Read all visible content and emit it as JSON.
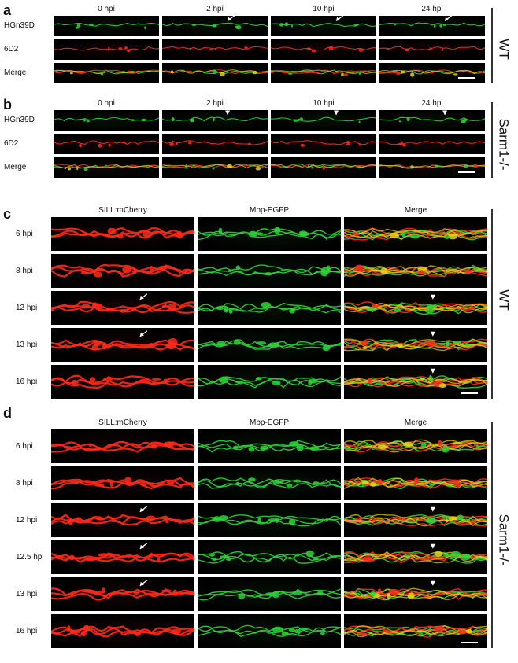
{
  "panels": [
    {
      "id": "a",
      "letter": "a",
      "genotype": "WT",
      "columns": [
        "0 hpi",
        "2 hpi",
        "10 hpi",
        "24 hpi"
      ],
      "rows": [
        "HGn39D",
        "6D2",
        "Merge"
      ],
      "channels": [
        "green",
        "red",
        "merge"
      ],
      "markers": [
        {
          "col": 1,
          "row": 0,
          "kind": "arrow"
        },
        {
          "col": 2,
          "row": 0,
          "kind": "arrow"
        },
        {
          "col": 3,
          "row": 0,
          "kind": "arrow"
        }
      ],
      "scale_bar": true
    },
    {
      "id": "b",
      "letter": "b",
      "genotype": "Sarm1-/-",
      "columns": [
        "0 hpi",
        "2 hpi",
        "10 hpi",
        "24 hpi"
      ],
      "rows": [
        "HGn39D",
        "6D2",
        "Merge"
      ],
      "channels": [
        "green",
        "red",
        "merge"
      ],
      "markers": [
        {
          "col": 1,
          "row": 0,
          "kind": "arrowhead"
        },
        {
          "col": 2,
          "row": 0,
          "kind": "arrowhead"
        },
        {
          "col": 3,
          "row": 0,
          "kind": "arrowhead"
        }
      ],
      "scale_bar": true
    },
    {
      "id": "c",
      "letter": "c",
      "genotype": "WT",
      "columns": [
        "SILL:mCherry",
        "Mbp-EGFP",
        "Merge"
      ],
      "rows": [
        "6 hpi",
        "8 hpi",
        "12 hpi",
        "13 hpi",
        "16 hpi"
      ],
      "channels": [
        "red",
        "green",
        "merge"
      ],
      "markers": [
        {
          "col": 0,
          "row": 2,
          "kind": "arrow"
        },
        {
          "col": 0,
          "row": 3,
          "kind": "arrow"
        },
        {
          "col": 2,
          "row": 2,
          "kind": "arrowhead"
        },
        {
          "col": 2,
          "row": 3,
          "kind": "arrowhead"
        },
        {
          "col": 2,
          "row": 4,
          "kind": "arrowhead"
        }
      ],
      "scale_bar": true
    },
    {
      "id": "d",
      "letter": "d",
      "genotype": "Sarm1-/-",
      "columns": [
        "SILL:mCherry",
        "Mbp-EGFP",
        "Merge"
      ],
      "rows": [
        "6 hpi",
        "8 hpi",
        "12 hpi",
        "12.5 hpi",
        "13 hpi",
        "16 hpi"
      ],
      "channels": [
        "red",
        "green",
        "merge"
      ],
      "markers": [
        {
          "col": 0,
          "row": 2,
          "kind": "arrow"
        },
        {
          "col": 0,
          "row": 3,
          "kind": "arrow"
        },
        {
          "col": 0,
          "row": 4,
          "kind": "arrow"
        },
        {
          "col": 2,
          "row": 2,
          "kind": "arrowhead"
        },
        {
          "col": 2,
          "row": 3,
          "kind": "arrowhead"
        },
        {
          "col": 2,
          "row": 4,
          "kind": "arrowhead"
        }
      ],
      "scale_bar": true
    }
  ],
  "colors": {
    "green_channel": "#2fd33a",
    "red_channel": "#ff2a1a",
    "merge_overlap": "#e8d21a",
    "cell_background": "#000000",
    "background": "#ffffff"
  }
}
